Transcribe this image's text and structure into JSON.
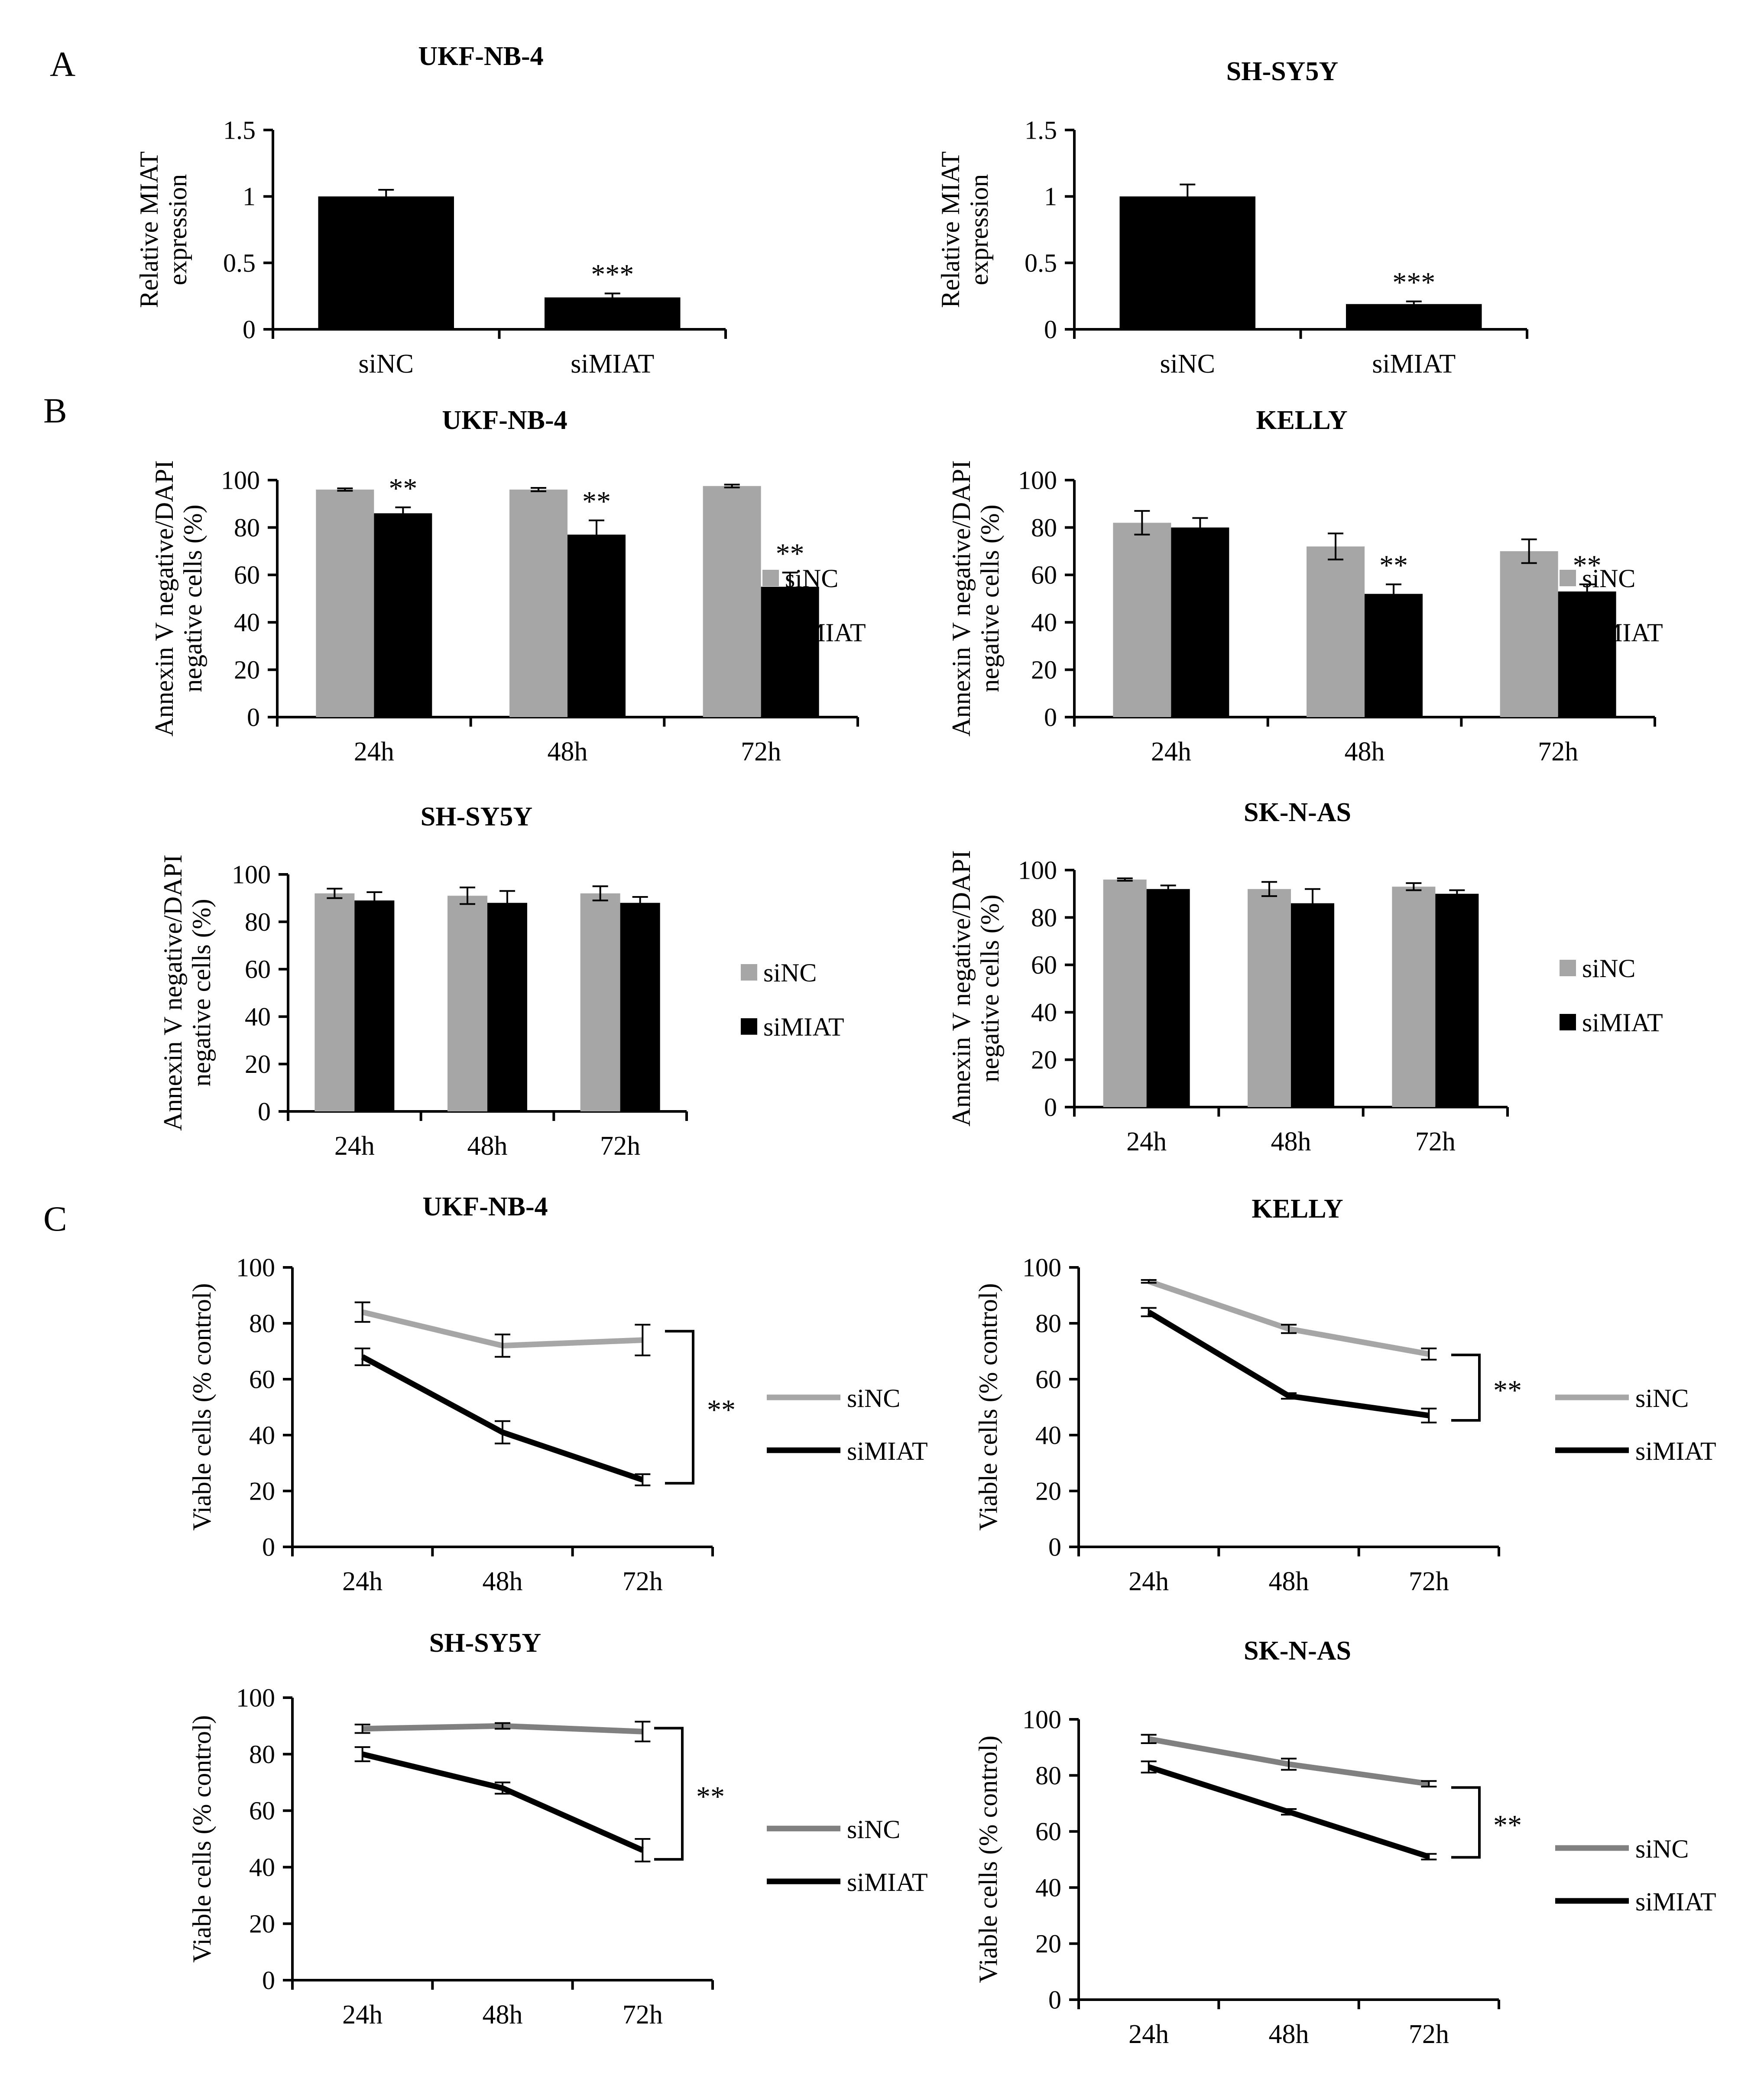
{
  "panel_labels": [
    "A",
    "B",
    "C"
  ],
  "colors": {
    "siNC_bar": "#a6a6a6",
    "siMIAT_bar": "#000000",
    "siNC_line": "#a6a6a6",
    "siNC_line_dark": "#808080",
    "siMIAT_line": "#000000"
  },
  "chart_data": [
    {
      "id": "A1",
      "type": "bar",
      "title": "UKF-NB-4",
      "ylabel": "Relative MIAT\nexpression",
      "ylim": [
        0,
        1.5
      ],
      "yticks": [
        "0",
        "0.5",
        "1",
        "1.5"
      ],
      "ytick_values": [
        0,
        0.5,
        1,
        1.5
      ],
      "categories": [
        "siNC",
        "siMIAT"
      ],
      "series": [
        {
          "values": [
            1.0,
            0.24
          ],
          "errors": [
            0.05,
            0.03
          ]
        }
      ],
      "annotations": [
        {
          "category": 1,
          "text": "***"
        }
      ],
      "grid": false
    },
    {
      "id": "A2",
      "type": "bar",
      "title": "SH-SY5Y",
      "ylabel": "Relative MIAT\nexpression",
      "ylim": [
        0,
        1.5
      ],
      "yticks": [
        "0",
        "0.5",
        "1",
        "1.5"
      ],
      "ytick_values": [
        0,
        0.5,
        1,
        1.5
      ],
      "categories": [
        "siNC",
        "siMIAT"
      ],
      "series": [
        {
          "values": [
            1.0,
            0.19
          ],
          "errors": [
            0.09,
            0.02
          ]
        }
      ],
      "annotations": [
        {
          "category": 1,
          "text": "***"
        }
      ],
      "grid": false
    },
    {
      "id": "B1",
      "type": "bar",
      "title": "UKF-NB-4",
      "ylabel": "Annexin V negative/DAPI\nnegative cells (%)",
      "ylim": [
        0,
        100
      ],
      "yticks": [
        "0",
        "20",
        "40",
        "60",
        "80",
        "100"
      ],
      "ytick_values": [
        0,
        20,
        40,
        60,
        80,
        100
      ],
      "categories": [
        "24h",
        "48h",
        "72h"
      ],
      "series": [
        {
          "name": "siNC",
          "values": [
            96,
            96,
            97.5
          ],
          "errors": [
            0.5,
            0.7,
            0.6
          ]
        },
        {
          "name": "siMIAT",
          "values": [
            86,
            77,
            55
          ],
          "errors": [
            2.5,
            6,
            6
          ]
        }
      ],
      "annotations": [
        {
          "category": 0,
          "series": 1,
          "text": "**"
        },
        {
          "category": 1,
          "series": 1,
          "text": "**"
        },
        {
          "category": 2,
          "series": 1,
          "text": "**"
        }
      ],
      "legend": "right",
      "grid": false
    },
    {
      "id": "B2",
      "type": "bar",
      "title": "KELLY",
      "ylabel": "Annexin V negative/DAPI\nnegative cells (%)",
      "ylim": [
        0,
        100
      ],
      "yticks": [
        "0",
        "20",
        "40",
        "60",
        "80",
        "100"
      ],
      "ytick_values": [
        0,
        20,
        40,
        60,
        80,
        100
      ],
      "categories": [
        "24h",
        "48h",
        "72h"
      ],
      "series": [
        {
          "name": "siNC",
          "values": [
            82,
            72,
            70
          ],
          "errors": [
            5,
            5.5,
            5
          ]
        },
        {
          "name": "siMIAT",
          "values": [
            80,
            52,
            53
          ],
          "errors": [
            4,
            4,
            3
          ]
        }
      ],
      "annotations": [
        {
          "category": 1,
          "series": 1,
          "text": "**"
        },
        {
          "category": 2,
          "series": 1,
          "text": "**"
        }
      ],
      "legend": "right",
      "grid": false
    },
    {
      "id": "B3",
      "type": "bar",
      "title": "SH-SY5Y",
      "ylabel": "Annexin V negative/DAPI\nnegative cells (%)",
      "ylim": [
        0,
        100
      ],
      "yticks": [
        "0",
        "20",
        "40",
        "60",
        "80",
        "100"
      ],
      "ytick_values": [
        0,
        20,
        40,
        60,
        80,
        100
      ],
      "categories": [
        "24h",
        "48h",
        "72h"
      ],
      "series": [
        {
          "name": "siNC",
          "values": [
            92,
            91,
            92
          ],
          "errors": [
            2,
            3.5,
            3
          ]
        },
        {
          "name": "siMIAT",
          "values": [
            89,
            88,
            88
          ],
          "errors": [
            3.5,
            5,
            2.5
          ]
        }
      ],
      "annotations": [],
      "legend": "right",
      "grid": false
    },
    {
      "id": "B4",
      "type": "bar",
      "title": "SK-N-AS",
      "ylabel": "Annexin V negative/DAPI\nnegative cells (%)",
      "ylim": [
        0,
        100
      ],
      "yticks": [
        "0",
        "20",
        "40",
        "60",
        "80",
        "100"
      ],
      "ytick_values": [
        0,
        20,
        40,
        60,
        80,
        100
      ],
      "categories": [
        "24h",
        "48h",
        "72h"
      ],
      "series": [
        {
          "name": "siNC",
          "values": [
            96,
            92,
            93
          ],
          "errors": [
            0.5,
            3,
            1.5
          ]
        },
        {
          "name": "siMIAT",
          "values": [
            92,
            86,
            90
          ],
          "errors": [
            1.5,
            6,
            1.5
          ]
        }
      ],
      "annotations": [],
      "legend": "right",
      "grid": false
    },
    {
      "id": "C1",
      "type": "line",
      "title": "UKF-NB-4",
      "ylabel": "Viable cells (% control)",
      "ylim": [
        0,
        100
      ],
      "yticks": [
        "0",
        "20",
        "40",
        "60",
        "80",
        "100"
      ],
      "ytick_values": [
        0,
        20,
        40,
        60,
        80,
        100
      ],
      "categories": [
        "24h",
        "48h",
        "72h"
      ],
      "series": [
        {
          "name": "siNC",
          "values": [
            84,
            72,
            74
          ],
          "errors": [
            3.5,
            4,
            5.5
          ]
        },
        {
          "name": "siMIAT",
          "values": [
            68,
            41,
            24
          ],
          "errors": [
            3,
            4,
            2
          ]
        }
      ],
      "bracket": {
        "text": "**"
      },
      "legend": "right",
      "grid": false
    },
    {
      "id": "C2",
      "type": "line",
      "title": "KELLY",
      "ylabel": "Viable cells (% control)",
      "ylim": [
        0,
        100
      ],
      "yticks": [
        "0",
        "20",
        "40",
        "60",
        "80",
        "100"
      ],
      "ytick_values": [
        0,
        20,
        40,
        60,
        80,
        100
      ],
      "categories": [
        "24h",
        "48h",
        "72h"
      ],
      "series": [
        {
          "name": "siNC",
          "values": [
            95,
            78,
            69
          ],
          "errors": [
            0.5,
            1.5,
            2
          ]
        },
        {
          "name": "siMIAT",
          "values": [
            84,
            54,
            47
          ],
          "errors": [
            1.5,
            1,
            2.5
          ]
        }
      ],
      "bracket": {
        "text": "**"
      },
      "legend": "right",
      "grid": false
    },
    {
      "id": "C3",
      "type": "line",
      "title": "SH-SY5Y",
      "ylabel": "Viable cells (% control)",
      "ylim": [
        0,
        100
      ],
      "yticks": [
        "0",
        "20",
        "40",
        "60",
        "80",
        "100"
      ],
      "ytick_values": [
        0,
        20,
        40,
        60,
        80,
        100
      ],
      "categories": [
        "24h",
        "48h",
        "72h"
      ],
      "series": [
        {
          "name": "siNC",
          "values": [
            89,
            90,
            88
          ],
          "errors": [
            1.5,
            1,
            3.5
          ]
        },
        {
          "name": "siMIAT",
          "values": [
            80,
            68,
            46
          ],
          "errors": [
            2.5,
            2,
            4
          ]
        }
      ],
      "bracket": {
        "text": "**"
      },
      "legend": "right",
      "grid": false
    },
    {
      "id": "C4",
      "type": "line",
      "title": "SK-N-AS",
      "ylabel": "Viable cells (% control)",
      "ylim": [
        0,
        100
      ],
      "yticks": [
        "0",
        "20",
        "40",
        "60",
        "80",
        "100"
      ],
      "ytick_values": [
        0,
        20,
        40,
        60,
        80,
        100
      ],
      "categories": [
        "24h",
        "48h",
        "72h"
      ],
      "series": [
        {
          "name": "siNC",
          "values": [
            93,
            84,
            77
          ],
          "errors": [
            1.5,
            2,
            1
          ]
        },
        {
          "name": "siMIAT",
          "values": [
            83,
            67,
            51
          ],
          "errors": [
            2,
            1,
            1
          ]
        }
      ],
      "bracket": {
        "text": "**"
      },
      "legend": "right",
      "grid": false
    }
  ]
}
